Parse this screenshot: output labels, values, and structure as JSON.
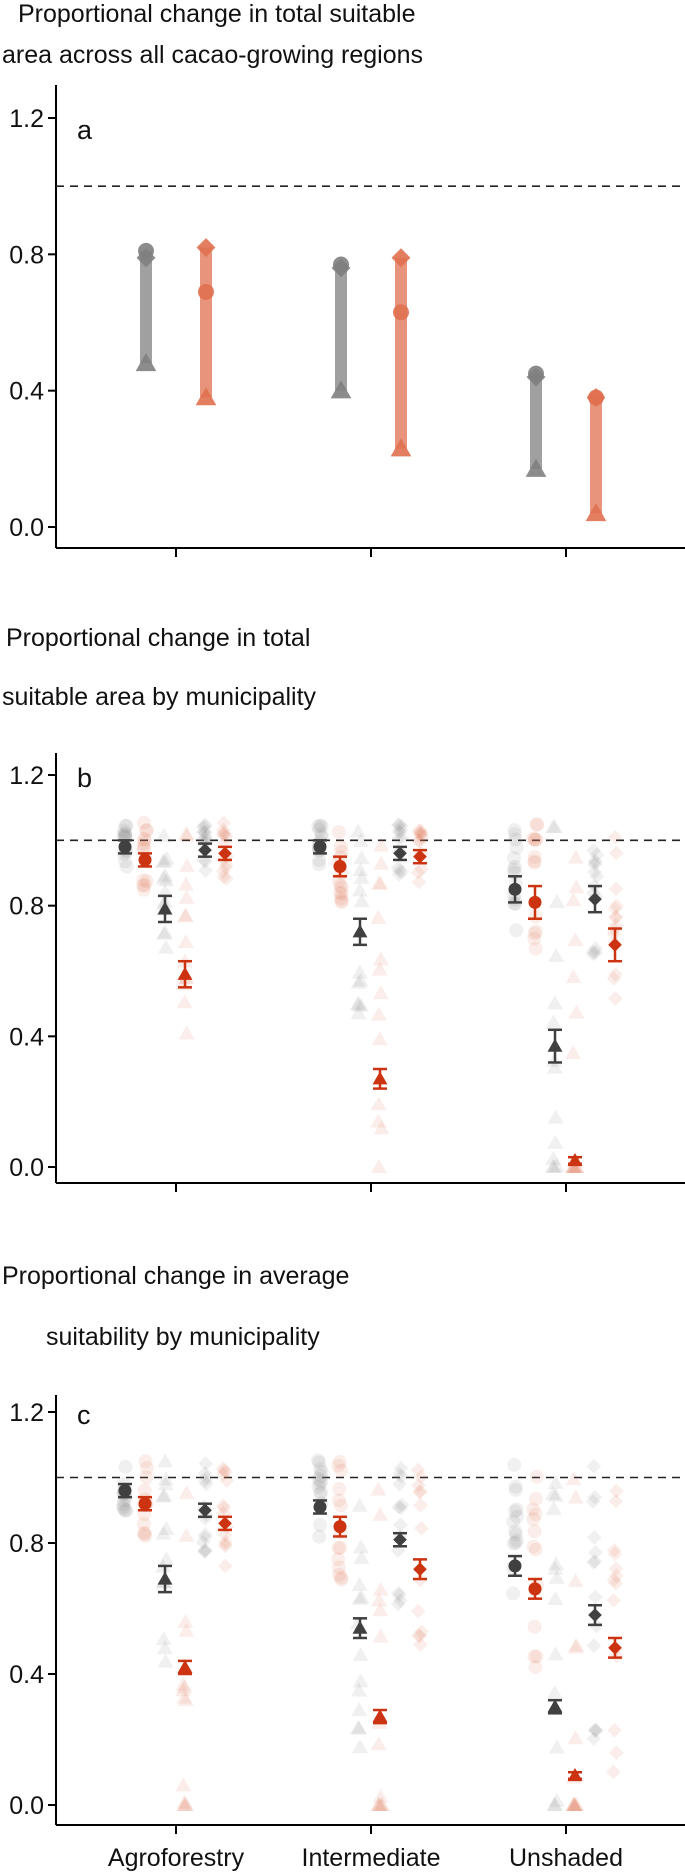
{
  "x_categories": [
    "Agroforestry",
    "Intermediate",
    "Unshaded"
  ],
  "colors": {
    "grey": "#808080",
    "dark_grey": "#404040",
    "orange": "#e07050",
    "red": "#cc3311",
    "ref_line": "#222222"
  },
  "chart_data": [
    {
      "panel_label": "a",
      "title_lines": [
        "Proportional change in total suitable",
        "area across all cacao-growing regions"
      ],
      "type": "range",
      "ylim": [
        -0.05,
        1.25
      ],
      "yticks": [
        0.0,
        0.4,
        0.8,
        1.2
      ],
      "reference_line": 1.0,
      "categories": [
        "Agroforestry",
        "Intermediate",
        "Unshaded"
      ],
      "groups": [
        {
          "color": "grey",
          "circle": [
            0.81,
            0.77,
            0.45
          ],
          "diamond": [
            0.79,
            0.76,
            0.44
          ],
          "triangle": [
            0.48,
            0.4,
            0.17
          ]
        },
        {
          "color": "orange",
          "circle": [
            0.69,
            0.63,
            0.38
          ],
          "diamond": [
            0.82,
            0.79,
            0.38
          ],
          "triangle": [
            0.38,
            0.23,
            0.04
          ]
        }
      ]
    },
    {
      "panel_label": "b",
      "title_lines": [
        "Proportional change in total",
        "suitable area by municipality"
      ],
      "type": "pointrange",
      "ylim": [
        -0.05,
        1.3
      ],
      "yticks": [
        0.0,
        0.4,
        0.8,
        1.2
      ],
      "reference_line": 1.0,
      "categories": [
        "Agroforestry",
        "Intermediate",
        "Unshaded"
      ],
      "series": [
        {
          "shape": "circle",
          "color": "grey",
          "means": [
            0.98,
            0.98,
            0.85
          ],
          "errors": [
            0.02,
            0.02,
            0.04
          ]
        },
        {
          "shape": "circle",
          "color": "red",
          "means": [
            0.94,
            0.92,
            0.81
          ],
          "errors": [
            0.02,
            0.03,
            0.05
          ]
        },
        {
          "shape": "triangle",
          "color": "grey",
          "means": [
            0.79,
            0.72,
            0.37
          ],
          "errors": [
            0.04,
            0.04,
            0.05
          ]
        },
        {
          "shape": "triangle",
          "color": "red",
          "means": [
            0.59,
            0.27,
            0.02
          ],
          "errors": [
            0.04,
            0.03,
            0.01
          ]
        },
        {
          "shape": "diamond",
          "color": "grey",
          "means": [
            0.97,
            0.96,
            0.82
          ],
          "errors": [
            0.02,
            0.02,
            0.04
          ]
        },
        {
          "shape": "diamond",
          "color": "red",
          "means": [
            0.96,
            0.95,
            0.68
          ],
          "errors": [
            0.02,
            0.02,
            0.05
          ]
        }
      ]
    },
    {
      "panel_label": "c",
      "title_lines": [
        "Proportional change in average",
        "suitability by municipality"
      ],
      "type": "pointrange",
      "ylim": [
        -0.05,
        1.3
      ],
      "yticks": [
        0.0,
        0.4,
        0.8,
        1.2
      ],
      "reference_line": 1.0,
      "categories": [
        "Agroforestry",
        "Intermediate",
        "Unshaded"
      ],
      "series": [
        {
          "shape": "circle",
          "color": "grey",
          "means": [
            0.96,
            0.91,
            0.73
          ],
          "errors": [
            0.02,
            0.02,
            0.03
          ]
        },
        {
          "shape": "circle",
          "color": "red",
          "means": [
            0.92,
            0.85,
            0.66
          ],
          "errors": [
            0.02,
            0.03,
            0.03
          ]
        },
        {
          "shape": "triangle",
          "color": "grey",
          "means": [
            0.69,
            0.54,
            0.3
          ],
          "errors": [
            0.04,
            0.03,
            0.02
          ]
        },
        {
          "shape": "triangle",
          "color": "red",
          "means": [
            0.42,
            0.27,
            0.09
          ],
          "errors": [
            0.02,
            0.02,
            0.01
          ]
        },
        {
          "shape": "diamond",
          "color": "grey",
          "means": [
            0.9,
            0.81,
            0.58
          ],
          "errors": [
            0.02,
            0.02,
            0.03
          ]
        },
        {
          "shape": "diamond",
          "color": "red",
          "means": [
            0.86,
            0.72,
            0.48
          ],
          "errors": [
            0.02,
            0.03,
            0.03
          ]
        }
      ]
    }
  ]
}
